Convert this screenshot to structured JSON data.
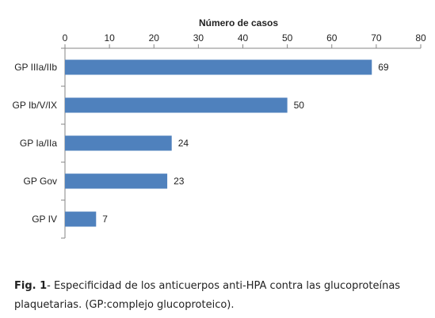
{
  "chart_data": {
    "type": "bar",
    "orientation": "horizontal",
    "xlabel": "Número de casos",
    "xaxis_position": "top",
    "xlim": [
      0,
      80
    ],
    "xticks": [
      0,
      10,
      20,
      30,
      40,
      50,
      60,
      70,
      80
    ],
    "categories": [
      "GP IIIa/IIb",
      "GP Ib/V/IX",
      "GP Ia/IIa",
      "GP Gov",
      "GP IV"
    ],
    "values": [
      69,
      50,
      24,
      23,
      7
    ],
    "bar_color": "#4f81bd",
    "grid": false,
    "data_labels": true
  },
  "caption": {
    "label": "Fig. 1",
    "text": "- Especificidad de los anticuerpos anti-HPA contra las glucoproteínas plaquetarias. (GP:complejo glucoproteico)."
  }
}
